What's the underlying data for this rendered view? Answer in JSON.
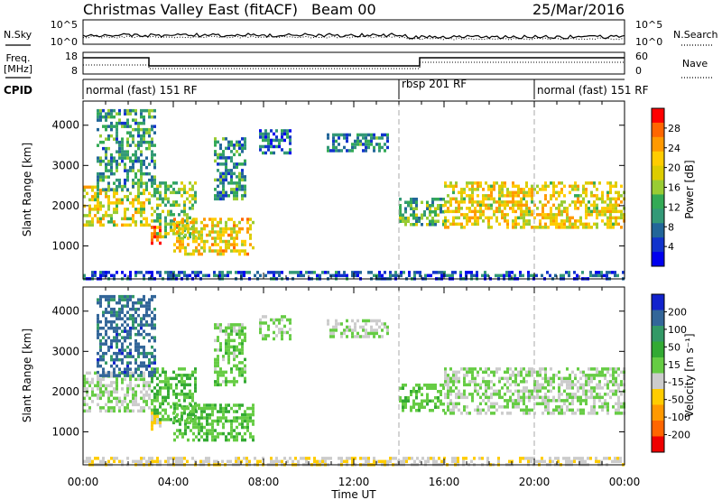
{
  "header": {
    "station": "Christmas Valley East (fitACF)",
    "beam": "Beam 00",
    "date": "25/Mar/2016"
  },
  "labels": {
    "nsky": "N.Sky",
    "nsearch": "N.Search",
    "freq_top": "Freq.",
    "freq_unit": "[MHz]",
    "nave": "Nave",
    "cpid": "CPID",
    "xlabel": "Time UT",
    "ylabel": "Slant Range [km]",
    "power_label": "Power [dB]",
    "velocity_label": "Velocity [m s⁻¹]"
  },
  "noise_axis": {
    "left": [
      "10^5",
      "10^0"
    ],
    "right": [
      "10^5",
      "10^0"
    ]
  },
  "freq_axis": {
    "left": [
      "18",
      "8"
    ],
    "right": [
      "60",
      "0"
    ]
  },
  "cpid_segments": [
    {
      "label": "normal (fast) 151 RF",
      "start_hour": 0
    },
    {
      "label": "rbsp 201 RF",
      "start_hour": 14
    },
    {
      "label": "normal (fast) 151 RF",
      "start_hour": 20
    }
  ],
  "power_scale": {
    "ticks": [
      "28",
      "24",
      "20",
      "16",
      "12",
      "8",
      "4"
    ],
    "colors": [
      "#ff0000",
      "#ff6600",
      "#ff9900",
      "#ffcc00",
      "#ddcc00",
      "#99cc33",
      "#33aa55",
      "#339977",
      "#226699",
      "#1133cc",
      "#0000ee"
    ]
  },
  "velocity_scale": {
    "ticks": [
      "200",
      "100",
      "50",
      "15",
      "-15",
      "-50",
      "-100",
      "-200"
    ],
    "colors": [
      "#1122cc",
      "#336699",
      "#339966",
      "#33aa33",
      "#66cc44",
      "#cccccc",
      "#ffcc00",
      "#ff9900",
      "#ff6600",
      "#ee0000"
    ]
  },
  "chart_data": {
    "type": "heatmap",
    "x_range_hours": [
      0,
      24
    ],
    "x_ticks": [
      "00:00",
      "04:00",
      "08:00",
      "12:00",
      "16:00",
      "20:00",
      "00:00"
    ],
    "y_range_km": [
      180,
      4600
    ],
    "y_ticks": [
      1000,
      2000,
      3000,
      4000
    ],
    "cpid_change_hours": [
      14,
      20
    ],
    "echo_regions": [
      {
        "t0": 0.0,
        "t1": 3.0,
        "r0": 1500,
        "r1": 2500,
        "power": 18,
        "velocity": 0
      },
      {
        "t0": 0.6,
        "t1": 3.2,
        "r0": 2400,
        "r1": 4400,
        "power": 10,
        "velocity": 150
      },
      {
        "t0": 3.0,
        "t1": 5.0,
        "r0": 1200,
        "r1": 2600,
        "power": 14,
        "velocity": 40
      },
      {
        "t0": 3.0,
        "t1": 3.4,
        "r0": 1100,
        "r1": 1500,
        "power": 27,
        "velocity": -40
      },
      {
        "t0": 4.0,
        "t1": 7.5,
        "r0": 800,
        "r1": 1700,
        "power": 20,
        "velocity": 40
      },
      {
        "t0": 5.8,
        "t1": 7.2,
        "r0": 2200,
        "r1": 3700,
        "power": 9,
        "velocity": 20
      },
      {
        "t0": 7.8,
        "t1": 9.2,
        "r0": 3300,
        "r1": 3900,
        "power": 6,
        "velocity": 10
      },
      {
        "t0": 10.8,
        "t1": 13.5,
        "r0": 3400,
        "r1": 3800,
        "power": 8,
        "velocity": 0
      },
      {
        "t0": 14.0,
        "t1": 16.0,
        "r0": 1500,
        "r1": 2200,
        "power": 12,
        "velocity": 30
      },
      {
        "t0": 16.0,
        "t1": 24.0,
        "r0": 1500,
        "r1": 2600,
        "power": 19,
        "velocity": 0
      },
      {
        "t0": 0.0,
        "t1": 24.0,
        "r0": 180,
        "r1": 380,
        "power": 5,
        "velocity": -30
      }
    ]
  }
}
